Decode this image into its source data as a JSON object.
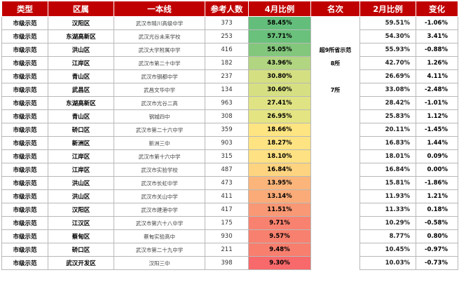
{
  "headers": [
    "类型",
    "区属",
    "一本线",
    "参考人数",
    "4月比例",
    "名次",
    "2月比例",
    "变化"
  ],
  "rows": [
    {
      "type": "市级示范",
      "district": "汉阳区",
      "school": "武汉市晴川高级中学",
      "count": "373",
      "apr": "58.45%",
      "apr_color": "#63be7b",
      "rank": "",
      "feb": "59.51%",
      "change": "-1.06%"
    },
    {
      "type": "市级示范",
      "district": "东湖高新区",
      "school": "武汉光谷未来学校",
      "count": "253",
      "apr": "57.71%",
      "apr_color": "#6ac17b",
      "rank": "",
      "feb": "54.30%",
      "change": "3.41%"
    },
    {
      "type": "市级示范",
      "district": "洪山区",
      "school": "武汉大学附属中学",
      "count": "416",
      "apr": "55.05%",
      "apr_color": "#83c77c",
      "rank": "超9所省示范",
      "feb": "55.93%",
      "change": "-0.88%"
    },
    {
      "type": "市级示范",
      "district": "江岸区",
      "school": "武汉市第二十中学",
      "count": "182",
      "apr": "43.96%",
      "apr_color": "#b1d580",
      "rank": "8所",
      "feb": "42.70%",
      "change": "1.26%"
    },
    {
      "type": "市级示范",
      "district": "青山区",
      "school": "武汉市钢都中学",
      "count": "237",
      "apr": "30.80%",
      "apr_color": "#d4df81",
      "rank": "",
      "feb": "26.69%",
      "change": "4.11%"
    },
    {
      "type": "市级示范",
      "district": "武昌区",
      "school": "武昌文华中学",
      "count": "134",
      "apr": "30.60%",
      "apr_color": "#d6e082",
      "rank": "7所",
      "feb": "33.08%",
      "change": "-2.48%"
    },
    {
      "type": "市级示范",
      "district": "东湖高新区",
      "school": "武汉市光谷二高",
      "count": "963",
      "apr": "27.41%",
      "apr_color": "#e0e383",
      "rank": "",
      "feb": "28.42%",
      "change": "-1.01%"
    },
    {
      "type": "市级示范",
      "district": "青山区",
      "school": "钢城四中",
      "count": "308",
      "apr": "26.95%",
      "apr_color": "#e4e483",
      "rank": "",
      "feb": "25.83%",
      "change": "1.12%"
    },
    {
      "type": "市级示范",
      "district": "硚口区",
      "school": "武汉市第二十六中学",
      "count": "359",
      "apr": "18.66%",
      "apr_color": "#fee582",
      "rank": "",
      "feb": "20.11%",
      "change": "-1.45%"
    },
    {
      "type": "市级示范",
      "district": "新洲区",
      "school": "新洲三中",
      "count": "903",
      "apr": "18.27%",
      "apr_color": "#fee382",
      "rank": "",
      "feb": "16.83%",
      "change": "1.44%"
    },
    {
      "type": "市级示范",
      "district": "江岸区",
      "school": "武汉市第十六中学",
      "count": "315",
      "apr": "18.10%",
      "apr_color": "#fee182",
      "rank": "",
      "feb": "18.01%",
      "change": "0.09%"
    },
    {
      "type": "市级示范",
      "district": "江岸区",
      "school": "武汉市实验学校",
      "count": "487",
      "apr": "16.84%",
      "apr_color": "#fed480",
      "rank": "",
      "feb": "16.84%",
      "change": "0.00%"
    },
    {
      "type": "市级示范",
      "district": "洪山区",
      "school": "武汉市长虹中学",
      "count": "473",
      "apr": "13.95%",
      "apr_color": "#fbb57a",
      "rank": "",
      "feb": "15.81%",
      "change": "-1.86%"
    },
    {
      "type": "市级示范",
      "district": "洪山区",
      "school": "武汉市关山中学",
      "count": "411",
      "apr": "13.14%",
      "apr_color": "#fbab78",
      "rank": "",
      "feb": "11.93%",
      "change": "1.21%"
    },
    {
      "type": "市级示范",
      "district": "汉阳区",
      "school": "武汉市建港中学",
      "count": "417",
      "apr": "11.51%",
      "apr_color": "#f99874",
      "rank": "",
      "feb": "11.33%",
      "change": "0.18%"
    },
    {
      "type": "市级示范",
      "district": "江汉区",
      "school": "武汉市第六十八中学",
      "count": "175",
      "apr": "9.71%",
      "apr_color": "#f8826f",
      "rank": "",
      "feb": "10.29%",
      "change": "-0.58%"
    },
    {
      "type": "市级示范",
      "district": "蔡甸区",
      "school": "蔡甸实验高中",
      "count": "930",
      "apr": "9.57%",
      "apr_color": "#f8806e",
      "rank": "",
      "feb": "8.77%",
      "change": "0.80%"
    },
    {
      "type": "市级示范",
      "district": "硚口区",
      "school": "武汉市第二十九中学",
      "count": "211",
      "apr": "9.48%",
      "apr_color": "#f87e6e",
      "rank": "",
      "feb": "10.45%",
      "change": "-0.97%"
    },
    {
      "type": "市级示范",
      "district": "武汉开发区",
      "school": "汉阳三中",
      "count": "398",
      "apr": "9.30%",
      "apr_color": "#f8696b",
      "rank": "",
      "feb": "10.03%",
      "change": "-0.73%"
    }
  ]
}
